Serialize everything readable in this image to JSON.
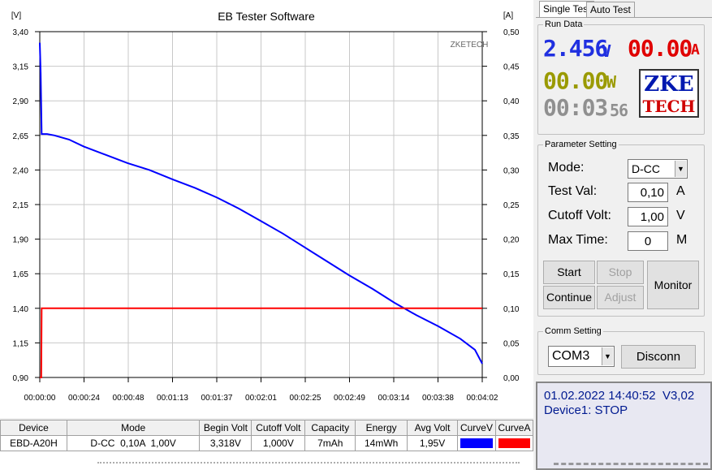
{
  "chart": {
    "title": "EB Tester Software",
    "watermark": "ZKETECH",
    "left_unit": "[V]",
    "right_unit": "[A]",
    "left_ticks": [
      "3,40",
      "3,15",
      "2,90",
      "2,65",
      "2,40",
      "2,15",
      "1,90",
      "1,65",
      "1,40",
      "1,15",
      "0,90"
    ],
    "right_ticks": [
      "0,50",
      "0,45",
      "0,40",
      "0,35",
      "0,30",
      "0,25",
      "0,20",
      "0,15",
      "0,10",
      "0,05",
      "0,00"
    ],
    "x_ticks": [
      "00:00:00",
      "00:00:24",
      "00:00:48",
      "00:01:13",
      "00:01:37",
      "00:02:01",
      "00:02:25",
      "00:02:49",
      "00:03:14",
      "00:03:38",
      "00:04:02"
    ]
  },
  "chart_data": {
    "type": "line",
    "title": "EB Tester Software",
    "xlabel": "",
    "ylabel": "[V]",
    "y2label": "[A]",
    "x_unit": "seconds",
    "xlim": [
      0,
      242
    ],
    "ylim": [
      0.9,
      3.4
    ],
    "y2lim": [
      0.0,
      0.5
    ],
    "grid": true,
    "series": [
      {
        "name": "CurveV",
        "axis": "left",
        "color": "#0000ff",
        "x": [
          0,
          0.5,
          1,
          2,
          4,
          8,
          16,
          24,
          36,
          48,
          60,
          73,
          85,
          97,
          109,
          121,
          133,
          145,
          157,
          169,
          182,
          194,
          206,
          218,
          230,
          238,
          242
        ],
        "y": [
          3.32,
          3.1,
          2.66,
          2.66,
          2.66,
          2.65,
          2.62,
          2.57,
          2.51,
          2.45,
          2.4,
          2.33,
          2.27,
          2.2,
          2.12,
          2.03,
          1.94,
          1.84,
          1.74,
          1.64,
          1.54,
          1.44,
          1.35,
          1.27,
          1.18,
          1.1,
          1.0
        ]
      },
      {
        "name": "CurveA",
        "axis": "right",
        "color": "#ff0000",
        "x": [
          0,
          0.8,
          1,
          242
        ],
        "y": [
          0.0,
          0.0,
          0.1,
          0.1
        ]
      }
    ]
  },
  "table": {
    "headers": [
      "Device",
      "Mode",
      "Begin Volt",
      "Cutoff Volt",
      "Capacity",
      "Energy",
      "Avg Volt",
      "CurveV",
      "CurveA"
    ],
    "row": [
      "EBD-A20H",
      "D-CC  0,10A  1,00V",
      "3,318V",
      "1,000V",
      "7mAh",
      "14mWh",
      "1,95V"
    ],
    "curve_colors": [
      "#0000ff",
      "#ff0000"
    ]
  },
  "tabs": [
    "Single Test",
    "Auto Test"
  ],
  "run_data": {
    "title": "Run Data",
    "voltage": "2.456",
    "voltage_unit": "V",
    "current": "00.00",
    "current_unit": "A",
    "power": "00.00",
    "power_unit": "W",
    "time": "00:03",
    "time_suffix": "56",
    "logo_top": "ZKE",
    "logo_bottom": "TECH"
  },
  "parameter": {
    "title": "Parameter Setting",
    "mode_label": "Mode:",
    "mode_value": "D-CC",
    "test_val_label": "Test Val:",
    "test_val": "0,10",
    "test_val_unit": "A",
    "cutoff_label": "Cutoff Volt:",
    "cutoff_value": "1,00",
    "cutoff_unit": "V",
    "max_time_label": "Max Time:",
    "max_time_value": "0",
    "max_time_unit": "M",
    "start": "Start",
    "stop": "Stop",
    "continue": "Continue",
    "adjust": "Adjust",
    "monitor": "Monitor"
  },
  "comm": {
    "title": "Comm Setting",
    "port": "COM3",
    "disconnect": "Disconn"
  },
  "status": {
    "line1": "01.02.2022 14:40:52  V3,02",
    "line2": "Device1: STOP"
  }
}
